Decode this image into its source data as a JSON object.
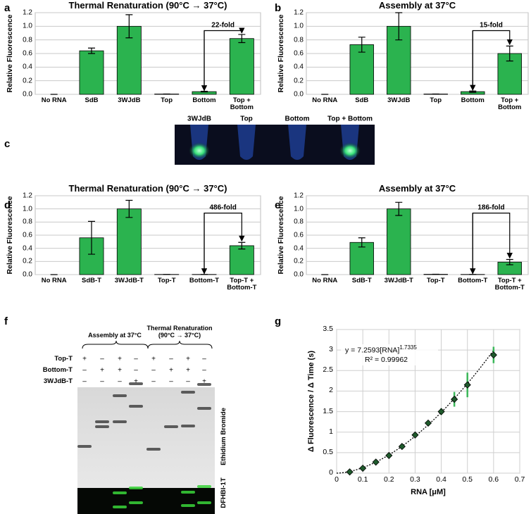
{
  "panel_labels": [
    "a",
    "b",
    "c",
    "d",
    "e",
    "f",
    "g"
  ],
  "chart_data": [
    {
      "type": "bar",
      "title": "Thermal Renaturation (90°C → 37°C)",
      "y_label": "Relative Fluorescence",
      "categories": [
        "No RNA",
        "SdB",
        "3WJdB",
        "Top",
        "Bottom",
        "Top + Bottom"
      ],
      "values": [
        0,
        0.64,
        1,
        0.005,
        0.04,
        0.82
      ],
      "errors": [
        0,
        0.04,
        0.17,
        0,
        0.005,
        0.06
      ],
      "color": "#2bb34f",
      "ylim": [
        0,
        1.2
      ],
      "yticks": [
        {
          "value": 0,
          "label": "0.0"
        },
        0.2,
        0.4,
        0.6,
        0.8,
        {
          "value": 1,
          "label": "1.0"
        },
        1.2
      ],
      "grid": true,
      "annotation": "22-fold"
    },
    {
      "type": "bar",
      "title": "Assembly at 37°C",
      "y_label": "Relative Fluorescence",
      "categories": [
        "No RNA",
        "SdB",
        "3WJdB",
        "Top",
        "Bottom",
        "Top + Bottom"
      ],
      "values": [
        0,
        0.73,
        1,
        0.005,
        0.04,
        0.6
      ],
      "errors": [
        0,
        0.11,
        0.2,
        0,
        0.01,
        0.11
      ],
      "color": "#2bb34f",
      "ylim": [
        0,
        1.2
      ],
      "yticks": [
        {
          "value": 0,
          "label": "0.0"
        },
        0.2,
        0.4,
        0.6,
        0.8,
        {
          "value": 1,
          "label": "1.0"
        },
        1.2
      ],
      "grid": true,
      "annotation": "15-fold"
    },
    {
      "type": "bar",
      "title": "Thermal Renaturation (90°C → 37°C)",
      "y_label": "Relative Fluorescence",
      "categories": [
        "No RNA",
        "SdB-T",
        "3WJdB-T",
        "Top-T",
        "Bottom-T",
        "Top-T + Bottom-T"
      ],
      "values": [
        0,
        0.56,
        1,
        0.003,
        0.003,
        0.44
      ],
      "errors": [
        0,
        0.25,
        0.13,
        0,
        0,
        0.05
      ],
      "color": "#2bb34f",
      "ylim": [
        0,
        1.2
      ],
      "yticks": [
        {
          "value": 0,
          "label": "0.0"
        },
        0.2,
        0.4,
        0.6,
        0.8,
        {
          "value": 1,
          "label": "1.0"
        },
        1.2
      ],
      "grid": true,
      "annotation": "486-fold"
    },
    {
      "type": "bar",
      "title": "Assembly at 37°C",
      "y_label": "Relative Fluorescence",
      "categories": [
        "No RNA",
        "SdB-T",
        "3WJdB-T",
        "Top-T",
        "Bottom-T",
        "Top-T + Bottom-T"
      ],
      "values": [
        0,
        0.49,
        1,
        0.005,
        0.003,
        0.19
      ],
      "errors": [
        0,
        0.07,
        0.1,
        0,
        0,
        0.04
      ],
      "color": "#2bb34f",
      "ylim": [
        0,
        1.2
      ],
      "yticks": [
        {
          "value": 0,
          "label": "0.0"
        },
        0.2,
        0.4,
        0.6,
        0.8,
        {
          "value": 1,
          "label": "1.0"
        },
        1.2
      ],
      "grid": true,
      "annotation": "186-fold"
    },
    {
      "type": "scatter",
      "x_label": "RNA [μM]",
      "y_label": "Δ Fluorescence / Δ Time (s)",
      "x": [
        0.05,
        0.1,
        0.15,
        0.2,
        0.25,
        0.3,
        0.35,
        0.4,
        0.45,
        0.5,
        0.6
      ],
      "y": [
        0.03,
        0.12,
        0.27,
        0.43,
        0.65,
        0.93,
        1.22,
        1.5,
        1.8,
        2.15,
        2.88
      ],
      "errors": [
        0.02,
        0.03,
        0.03,
        0.04,
        0.04,
        0.05,
        0.06,
        0.08,
        0.18,
        0.3,
        0.2
      ],
      "color": "#1f5a2c",
      "error_color": "#3cb85a",
      "xlim": [
        0,
        0.7
      ],
      "xticks": [
        0,
        0.1,
        0.2,
        0.3,
        0.4,
        0.5,
        0.6,
        0.7
      ],
      "ylim": [
        0,
        3.5
      ],
      "yticks": [
        0,
        0.5,
        1,
        1.5,
        2,
        2.5,
        3,
        3.5
      ],
      "grid": true,
      "fit": {
        "equation": "y = 7.2593[RNA]",
        "exponent": 1.7335,
        "coefficient": 7.2593,
        "r_squared": "R² = 0.99962"
      }
    }
  ],
  "photo": {
    "labels": [
      "3WJdB",
      "Top",
      "Bottom",
      "Top + Bottom"
    ]
  },
  "gel": {
    "groups": [
      "Assembly at 37°C",
      "Thermal Renaturation (90°C → 37°C)"
    ],
    "rows": [
      {
        "label": "Top-T",
        "signs": [
          "+",
          "–",
          "+",
          "–",
          "+",
          "–",
          "+",
          "–"
        ]
      },
      {
        "label": "Bottom-T",
        "signs": [
          "–",
          "+",
          "+",
          "–",
          "–",
          "+",
          "+",
          "–"
        ]
      },
      {
        "label": "3WJdB-T",
        "signs": [
          "–",
          "–",
          "–",
          "+",
          "–",
          "–",
          "–",
          "+"
        ]
      }
    ],
    "stains": [
      "Ethidium Bromide",
      "DFHBI-1T"
    ]
  }
}
